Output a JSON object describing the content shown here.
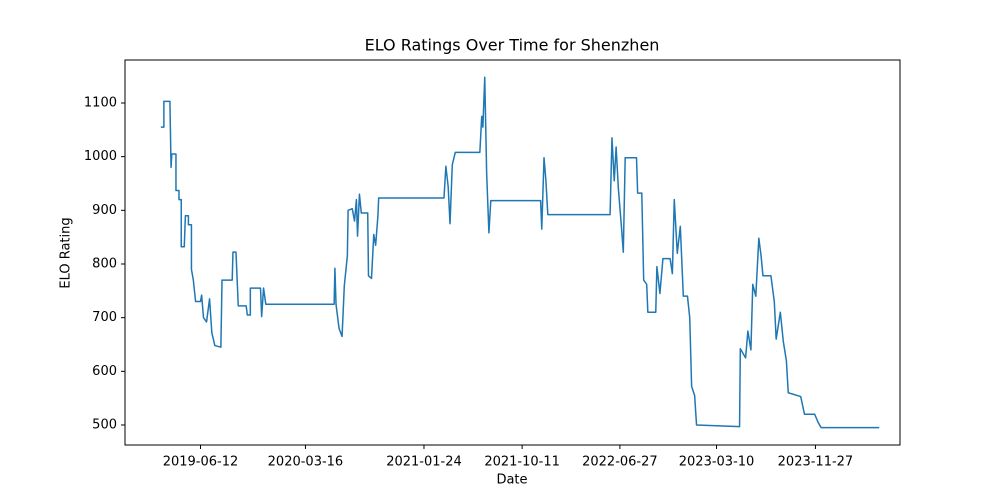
{
  "chart_data": {
    "type": "line",
    "title": "ELO Ratings Over Time for Shenzhen",
    "xlabel": "Date",
    "ylabel": "ELO Rating",
    "x": [
      "2019-02-27",
      "2019-03-07",
      "2019-03-07",
      "2019-03-23",
      "2019-03-26",
      "2019-03-28",
      "2019-04-08",
      "2019-04-08",
      "2019-04-16",
      "2019-04-16",
      "2019-04-22",
      "2019-04-22",
      "2019-04-30",
      "2019-05-03",
      "2019-05-11",
      "2019-05-11",
      "2019-05-19",
      "2019-05-19",
      "2019-05-24",
      "2019-05-30",
      "2019-06-12",
      "2019-06-15",
      "2019-06-20",
      "2019-06-28",
      "2019-07-06",
      "2019-07-12",
      "2019-07-20",
      "2019-08-05",
      "2019-08-08",
      "2019-09-04",
      "2019-09-06",
      "2019-09-14",
      "2019-09-20",
      "2019-10-11",
      "2019-10-14",
      "2019-10-22",
      "2019-10-22",
      "2019-11-18",
      "2019-11-21",
      "2019-11-26",
      "2019-12-02",
      "2020-05-31",
      "2020-06-02",
      "2020-06-05",
      "2020-06-13",
      "2020-06-21",
      "2020-06-27",
      "2020-07-05",
      "2020-07-07",
      "2020-07-18",
      "2020-07-24",
      "2020-07-29",
      "2020-08-01",
      "2020-08-06",
      "2020-08-11",
      "2020-08-28",
      "2020-08-30",
      "2020-09-07",
      "2020-09-13",
      "2020-09-18",
      "2020-09-24",
      "2020-09-26",
      "2021-03-18",
      "2021-03-23",
      "2021-03-29",
      "2021-04-03",
      "2021-04-09",
      "2021-04-17",
      "2021-06-21",
      "2021-06-26",
      "2021-06-29",
      "2021-07-04",
      "2021-07-09",
      "2021-07-15",
      "2021-07-20",
      "2021-11-29",
      "2021-12-02",
      "2021-12-08",
      "2021-12-13",
      "2021-12-18",
      "2022-06-01",
      "2022-06-06",
      "2022-06-12",
      "2022-06-17",
      "2022-06-23",
      "2022-07-01",
      "2022-07-06",
      "2022-07-11",
      "2022-08-10",
      "2022-08-13",
      "2022-08-24",
      "2022-08-29",
      "2022-09-06",
      "2022-09-09",
      "2022-09-30",
      "2022-10-03",
      "2022-10-11",
      "2022-10-19",
      "2022-11-07",
      "2022-11-13",
      "2022-11-18",
      "2022-11-26",
      "2022-12-04",
      "2022-12-12",
      "2022-12-23",
      "2022-12-29",
      "2023-01-03",
      "2023-01-11",
      "2023-01-16",
      "2023-05-10",
      "2023-05-12",
      "2023-05-26",
      "2023-06-01",
      "2023-06-09",
      "2023-06-14",
      "2023-06-22",
      "2023-06-30",
      "2023-07-06",
      "2023-07-11",
      "2023-08-01",
      "2023-08-10",
      "2023-08-15",
      "2023-08-26",
      "2023-09-03",
      "2023-09-11",
      "2023-09-16",
      "2023-10-19",
      "2023-10-29",
      "2023-11-25",
      "2023-12-04",
      "2023-12-12",
      "2024-05-14"
    ],
    "series": [
      {
        "name": "Shenzhen",
        "color": "#1f77b4",
        "values": [
          1055,
          1055,
          1103,
          1103,
          980,
          1005,
          1005,
          937,
          937,
          920,
          920,
          832,
          832,
          890,
          890,
          873,
          873,
          790,
          770,
          730,
          730,
          742,
          700,
          692,
          735,
          672,
          648,
          645,
          770,
          770,
          822,
          822,
          722,
          722,
          705,
          705,
          755,
          755,
          702,
          755,
          725,
          725,
          792,
          725,
          680,
          665,
          760,
          815,
          900,
          903,
          880,
          920,
          852,
          930,
          895,
          895,
          778,
          773,
          855,
          835,
          890,
          923,
          923,
          982,
          945,
          875,
          985,
          1008,
          1008,
          1075,
          1055,
          1148,
          970,
          858,
          918,
          918,
          865,
          998,
          955,
          892,
          892,
          1035,
          955,
          1018,
          940,
          870,
          822,
          998,
          998,
          932,
          932,
          770,
          762,
          710,
          710,
          795,
          745,
          810,
          810,
          782,
          920,
          820,
          870,
          740,
          740,
          700,
          572,
          555,
          500,
          497,
          642,
          625,
          675,
          640,
          762,
          740,
          848,
          815,
          778,
          778,
          730,
          660,
          710,
          655,
          620,
          560,
          553,
          520,
          520,
          505,
          495,
          495
        ]
      }
    ],
    "xlim": [
      "2018-11-24",
      "2024-07-08"
    ],
    "xticks": [
      "2019-06-12",
      "2020-03-16",
      "2021-01-24",
      "2021-10-11",
      "2022-06-27",
      "2023-03-10",
      "2023-11-27"
    ],
    "ylim": [
      462.7,
      1180.1
    ],
    "yticks": [
      500,
      600,
      700,
      800,
      900,
      1000,
      1100
    ]
  }
}
